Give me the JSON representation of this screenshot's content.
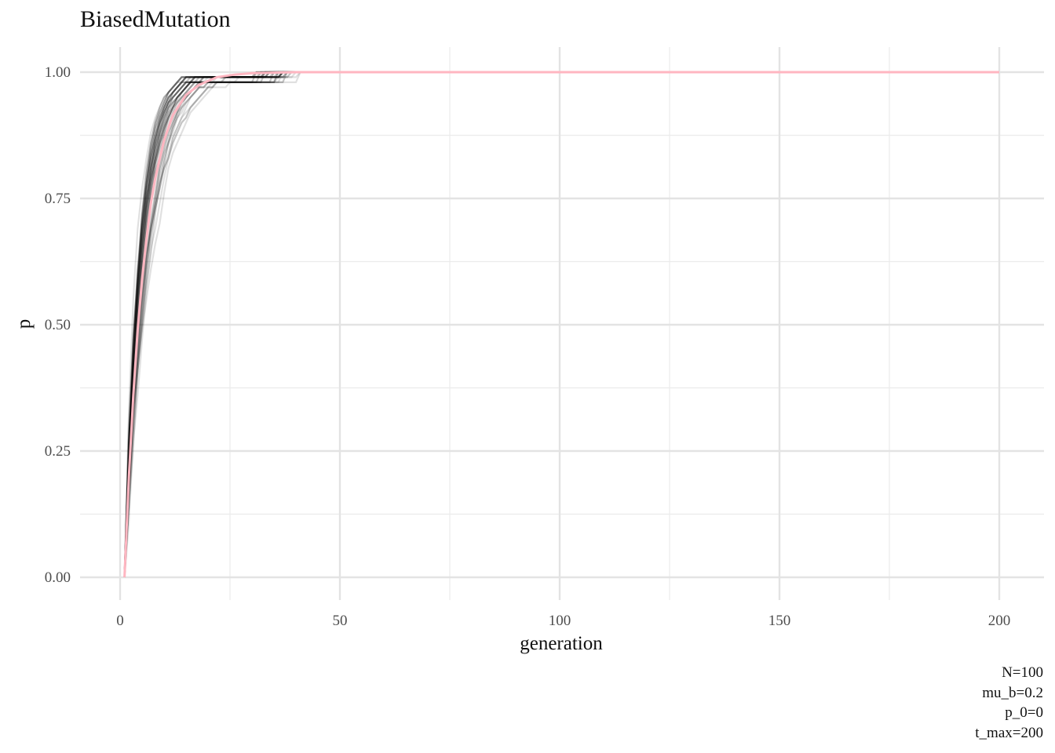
{
  "chart_data": {
    "type": "line",
    "title": "BiasedMutation",
    "xlabel": "generation",
    "ylabel": "p",
    "xlim": [
      0,
      200
    ],
    "ylim": [
      0,
      1
    ],
    "x_ticks": [
      0,
      50,
      100,
      150,
      200
    ],
    "x_tick_labels": [
      "0",
      "50",
      "100",
      "150",
      "200"
    ],
    "y_ticks": [
      0,
      0.25,
      0.5,
      0.75,
      1.0
    ],
    "y_tick_labels": [
      "0.00",
      "0.25",
      "0.50",
      "0.75",
      "1.00"
    ],
    "grid": true,
    "legend": "none",
    "caption": [
      "N=100",
      "mu_b=0.2",
      "p_0=0",
      "t_max=200"
    ],
    "mean_series": {
      "color": "#ffb6c1",
      "x": [
        1,
        2,
        3,
        4,
        5,
        6,
        7,
        8,
        10,
        12,
        15,
        18,
        22,
        26,
        30,
        35,
        40,
        50,
        200
      ],
      "y": [
        0.0,
        0.2,
        0.36,
        0.49,
        0.59,
        0.67,
        0.74,
        0.79,
        0.865,
        0.915,
        0.955,
        0.975,
        0.99,
        0.995,
        0.998,
        0.999,
        1.0,
        1.0,
        1.0
      ]
    },
    "simulation_runs": {
      "count": 50,
      "color": "#000000",
      "x_range": [
        1,
        200
      ],
      "y_start": 0.0,
      "y_end": 1.0
    }
  }
}
